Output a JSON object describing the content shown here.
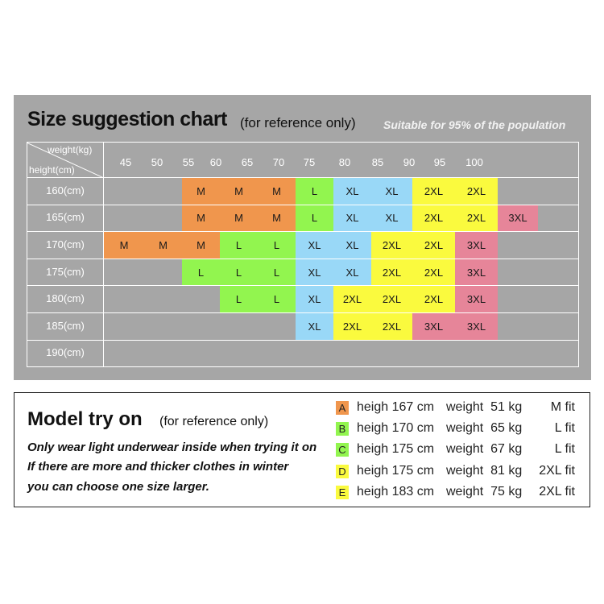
{
  "title": "Size suggestion chart",
  "subtitle": "(for reference only)",
  "note": "Suitable for 95% of the population",
  "colors": {
    "panel": "#a6a6a6",
    "M": "#f0964d",
    "L": "#92f54f",
    "XL": "#99d8f7",
    "2XL": "#fafa3e",
    "3XL": "#e68599"
  },
  "chart_data": {
    "type": "table",
    "corner": {
      "x_label": "weight(kg)",
      "y_label": "height(cm)"
    },
    "x_ticks": [
      "45",
      "50",
      "55",
      "60",
      "65",
      "70",
      "75",
      "80",
      "85",
      "90",
      "95",
      "100"
    ],
    "rows": [
      {
        "label": "160(cm)",
        "cells": [
          {
            "size": "M",
            "label": "M"
          },
          {
            "size": "M",
            "label": "M"
          },
          {
            "size": "M",
            "label": "M"
          },
          {
            "size": "L",
            "label": "L"
          },
          {
            "size": "XL",
            "label": "XL"
          },
          {
            "size": "XL",
            "label": "XL"
          },
          {
            "size": "2XL",
            "label": "2XL"
          },
          {
            "size": "2XL",
            "label": "2XL"
          }
        ]
      },
      {
        "label": "165(cm)",
        "cells": [
          {
            "size": "M",
            "label": "M"
          },
          {
            "size": "M",
            "label": "M"
          },
          {
            "size": "M",
            "label": "M"
          },
          {
            "size": "L",
            "label": "L"
          },
          {
            "size": "XL",
            "label": "XL"
          },
          {
            "size": "XL",
            "label": "XL"
          },
          {
            "size": "2XL",
            "label": "2XL"
          },
          {
            "size": "2XL",
            "label": "2XL"
          },
          {
            "size": "3XL",
            "label": "3XL"
          }
        ]
      },
      {
        "label": "170(cm)",
        "cells": [
          {
            "size": "M",
            "label": "M"
          },
          {
            "size": "M",
            "label": "M"
          },
          {
            "size": "M",
            "label": "M"
          },
          {
            "size": "L",
            "label": "L"
          },
          {
            "size": "L",
            "label": "L"
          },
          {
            "size": "XL",
            "label": "XL"
          },
          {
            "size": "XL",
            "label": "XL"
          },
          {
            "size": "2XL",
            "label": "2XL"
          },
          {
            "size": "2XL",
            "label": "2XL"
          },
          {
            "size": "3XL",
            "label": "3XL"
          }
        ]
      },
      {
        "label": "175(cm)",
        "cells": [
          {
            "size": "L",
            "label": "L"
          },
          {
            "size": "L",
            "label": "L"
          },
          {
            "size": "L",
            "label": "L"
          },
          {
            "size": "XL",
            "label": "XL"
          },
          {
            "size": "XL",
            "label": "XL"
          },
          {
            "size": "2XL",
            "label": "2XL"
          },
          {
            "size": "2XL",
            "label": "2XL"
          },
          {
            "size": "3XL",
            "label": "3XL"
          }
        ]
      },
      {
        "label": "180(cm)",
        "cells": [
          {
            "size": "L",
            "label": "L"
          },
          {
            "size": "L",
            "label": "L"
          },
          {
            "size": "XL",
            "label": "XL"
          },
          {
            "size": "2XL",
            "label": "2XL"
          },
          {
            "size": "2XL",
            "label": "2XL"
          },
          {
            "size": "2XL",
            "label": "2XL"
          },
          {
            "size": "3XL",
            "label": "3XL"
          }
        ]
      },
      {
        "label": "185(cm)",
        "cells": [
          {
            "size": "XL",
            "label": "XL"
          },
          {
            "size": "2XL",
            "label": "2XL"
          },
          {
            "size": "2XL",
            "label": "2XL"
          },
          {
            "size": "3XL",
            "label": "3XL"
          },
          {
            "size": "3XL",
            "label": "3XL"
          }
        ]
      },
      {
        "label": "190(cm)",
        "cells": []
      }
    ]
  },
  "model": {
    "title": "Model try on",
    "subtitle": "(for reference only)",
    "notes": [
      "Only wear light underwear inside when trying it on",
      "If there are more and thicker clothes in winter",
      "you can choose one size larger."
    ],
    "rows": [
      {
        "badge": "A",
        "badge_color": "#f0964d",
        "height": "heigh 167 cm",
        "weight": "weight  51 kg",
        "fit": "M fit"
      },
      {
        "badge": "B",
        "badge_color": "#92f54f",
        "height": "heigh 170 cm",
        "weight": "weight  65 kg",
        "fit": "L fit"
      },
      {
        "badge": "C",
        "badge_color": "#92f54f",
        "height": "heigh 175 cm",
        "weight": "weight  67 kg",
        "fit": "L fit"
      },
      {
        "badge": "D",
        "badge_color": "#fafa3e",
        "height": "heigh 175 cm",
        "weight": "weight  81 kg",
        "fit": "2XL fit"
      },
      {
        "badge": "E",
        "badge_color": "#fafa3e",
        "height": "heigh 183 cm",
        "weight": "weight  75 kg",
        "fit": "2XL fit"
      }
    ]
  }
}
